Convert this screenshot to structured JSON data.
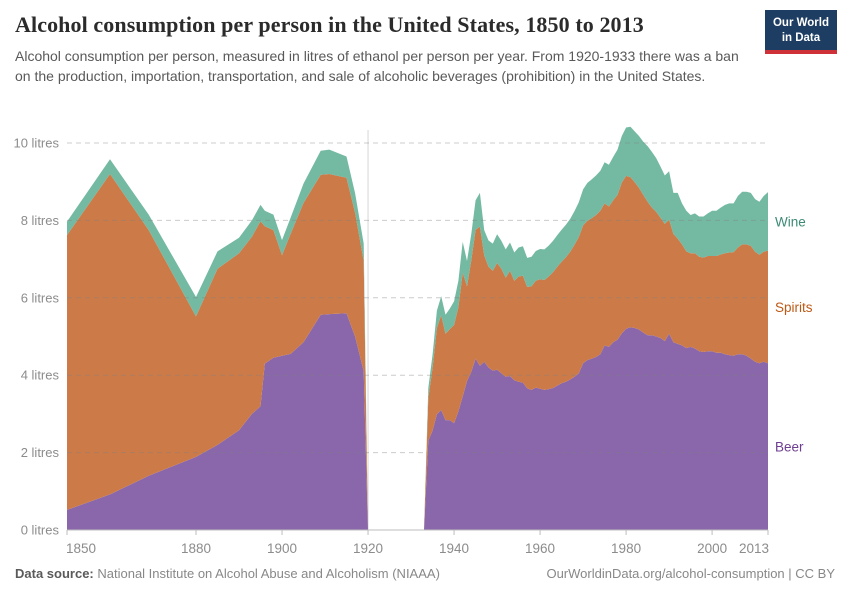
{
  "header": {
    "title": "Alcohol consumption per person in the United States, 1850 to 2013",
    "subtitle": "Alcohol consumption per person, measured in litres of ethanol per person per year. From 1920-1933 there was a ban on the production, importation, transportation, and sale of alcoholic beverages (prohibition) in the United States."
  },
  "logo": {
    "line1": "Our World",
    "line2": "in Data",
    "bg_color": "#1d3d63",
    "bar_color": "#cf3138"
  },
  "footer": {
    "source_prefix": "Data source:",
    "source_text": "National Institute on Alcohol Abuse and Alcoholism (NIAAA)",
    "credit": "OurWorldinData.org/alcohol-consumption | CC BY"
  },
  "colors": {
    "grid_dash": "rgba(127,127,127,0.4)",
    "prohibition_line": "#d6d6d6",
    "axis": "#bdbdbd",
    "tick_text": "#8c8c8c"
  },
  "chart_data": {
    "type": "area",
    "stacked": true,
    "title": "Alcohol consumption per person in the United States, 1850 to 2013",
    "ylabel": "litres of ethanol per person per year",
    "ylim": [
      0,
      10.5
    ],
    "grid": true,
    "legend_position": "right-edge-labels",
    "prohibition_line_year": 1920,
    "note": "Values are zero during prohibition 1920-1933 (gap in chart)",
    "x": [
      1850,
      1860,
      1869,
      1880,
      1885,
      1890,
      1893,
      1895,
      1896,
      1898,
      1900,
      1902,
      1905,
      1909,
      1911,
      1915,
      1917,
      1919,
      1920,
      1933,
      1934,
      1935,
      1936,
      1937,
      1938,
      1939,
      1940,
      1941,
      1942,
      1943,
      1944,
      1945,
      1946,
      1947,
      1948,
      1949,
      1950,
      1951,
      1952,
      1953,
      1954,
      1955,
      1956,
      1957,
      1958,
      1959,
      1960,
      1961,
      1962,
      1963,
      1964,
      1965,
      1966,
      1967,
      1968,
      1969,
      1970,
      1971,
      1972,
      1973,
      1974,
      1975,
      1976,
      1977,
      1978,
      1979,
      1980,
      1981,
      1982,
      1983,
      1984,
      1985,
      1986,
      1987,
      1988,
      1989,
      1990,
      1991,
      1992,
      1993,
      1994,
      1995,
      1996,
      1997,
      1998,
      1999,
      2000,
      2001,
      2002,
      2003,
      2004,
      2005,
      2006,
      2007,
      2008,
      2009,
      2010,
      2011,
      2012,
      2013
    ],
    "series": [
      {
        "name": "Beer",
        "color": "#8a67ab",
        "label_color": "#6d3e91",
        "values": [
          0.52,
          0.92,
          1.4,
          1.89,
          2.2,
          2.58,
          3.0,
          3.2,
          4.3,
          4.45,
          4.5,
          4.55,
          4.85,
          5.56,
          5.58,
          5.6,
          5.0,
          4.1,
          0,
          0,
          2.31,
          2.57,
          2.99,
          3.1,
          2.84,
          2.84,
          2.76,
          3.07,
          3.45,
          3.85,
          4.09,
          4.43,
          4.24,
          4.35,
          4.2,
          4.12,
          4.14,
          4.05,
          3.96,
          3.98,
          3.87,
          3.83,
          3.81,
          3.66,
          3.62,
          3.68,
          3.65,
          3.62,
          3.64,
          3.67,
          3.73,
          3.79,
          3.83,
          3.89,
          3.96,
          4.05,
          4.31,
          4.39,
          4.43,
          4.47,
          4.54,
          4.77,
          4.73,
          4.85,
          4.92,
          5.08,
          5.2,
          5.24,
          5.22,
          5.18,
          5.1,
          5.03,
          5.03,
          5.0,
          4.96,
          4.88,
          5.07,
          4.85,
          4.81,
          4.77,
          4.7,
          4.73,
          4.69,
          4.62,
          4.6,
          4.62,
          4.62,
          4.58,
          4.58,
          4.54,
          4.52,
          4.5,
          4.54,
          4.54,
          4.5,
          4.43,
          4.35,
          4.31,
          4.35,
          4.31
        ]
      },
      {
        "name": "Spirits",
        "color": "#cc7b48",
        "label_color": "#be5915",
        "values": [
          7.1,
          8.28,
          6.35,
          3.63,
          4.55,
          4.57,
          4.58,
          4.78,
          3.55,
          3.3,
          2.6,
          3.1,
          3.6,
          3.62,
          3.62,
          3.5,
          3.2,
          2.85,
          0,
          0,
          1.1,
          1.63,
          2.23,
          2.45,
          2.23,
          2.35,
          2.54,
          2.69,
          3.2,
          2.45,
          2.88,
          3.33,
          3.6,
          2.75,
          2.6,
          2.58,
          2.76,
          2.7,
          2.56,
          2.72,
          2.57,
          2.72,
          2.76,
          2.62,
          2.68,
          2.76,
          2.83,
          2.84,
          2.91,
          2.99,
          3.07,
          3.14,
          3.22,
          3.3,
          3.41,
          3.52,
          3.56,
          3.6,
          3.63,
          3.67,
          3.71,
          3.67,
          3.63,
          3.67,
          3.74,
          3.9,
          3.95,
          3.88,
          3.77,
          3.66,
          3.56,
          3.45,
          3.3,
          3.22,
          3.11,
          3.03,
          2.95,
          2.8,
          2.72,
          2.61,
          2.5,
          2.42,
          2.46,
          2.44,
          2.44,
          2.46,
          2.46,
          2.5,
          2.54,
          2.61,
          2.65,
          2.68,
          2.76,
          2.84,
          2.88,
          2.91,
          2.84,
          2.8,
          2.84,
          2.91
        ]
      },
      {
        "name": "Wine",
        "color": "#74b9a2",
        "label_color": "#3c8a75",
        "values": [
          0.35,
          0.38,
          0.4,
          0.5,
          0.45,
          0.4,
          0.42,
          0.42,
          0.4,
          0.4,
          0.39,
          0.42,
          0.5,
          0.62,
          0.63,
          0.55,
          0.5,
          0.45,
          0,
          0,
          0.26,
          0.34,
          0.45,
          0.49,
          0.49,
          0.53,
          0.61,
          0.68,
          0.8,
          0.65,
          0.68,
          0.76,
          0.87,
          0.65,
          0.68,
          0.7,
          0.74,
          0.72,
          0.73,
          0.73,
          0.73,
          0.75,
          0.76,
          0.75,
          0.76,
          0.77,
          0.78,
          0.79,
          0.8,
          0.81,
          0.82,
          0.83,
          0.84,
          0.85,
          0.87,
          0.9,
          0.93,
          0.98,
          1.0,
          1.02,
          1.03,
          1.06,
          1.08,
          1.12,
          1.17,
          1.2,
          1.25,
          1.3,
          1.31,
          1.34,
          1.37,
          1.44,
          1.44,
          1.39,
          1.32,
          1.25,
          1.25,
          1.06,
          1.18,
          1.06,
          1.05,
          0.99,
          1.03,
          1.04,
          1.06,
          1.1,
          1.17,
          1.17,
          1.21,
          1.25,
          1.27,
          1.26,
          1.33,
          1.36,
          1.36,
          1.37,
          1.36,
          1.37,
          1.44,
          1.51
        ]
      }
    ],
    "yticks": [
      {
        "value": 0,
        "label": "0 litres"
      },
      {
        "value": 2,
        "label": "2 litres"
      },
      {
        "value": 4,
        "label": "4 litres"
      },
      {
        "value": 6,
        "label": "6 litres"
      },
      {
        "value": 8,
        "label": "8 litres"
      },
      {
        "value": 10,
        "label": "10 litres"
      }
    ],
    "xticks": [
      {
        "year": 1850,
        "label": "1850",
        "label_dx": 14
      },
      {
        "year": 1880,
        "label": "1880"
      },
      {
        "year": 1900,
        "label": "1900"
      },
      {
        "year": 1920,
        "label": "1920"
      },
      {
        "year": 1940,
        "label": "1940"
      },
      {
        "year": 1960,
        "label": "1960"
      },
      {
        "year": 1980,
        "label": "1980"
      },
      {
        "year": 2000,
        "label": "2000"
      },
      {
        "year": 2013,
        "label": "2013",
        "label_dx": -14
      }
    ]
  }
}
